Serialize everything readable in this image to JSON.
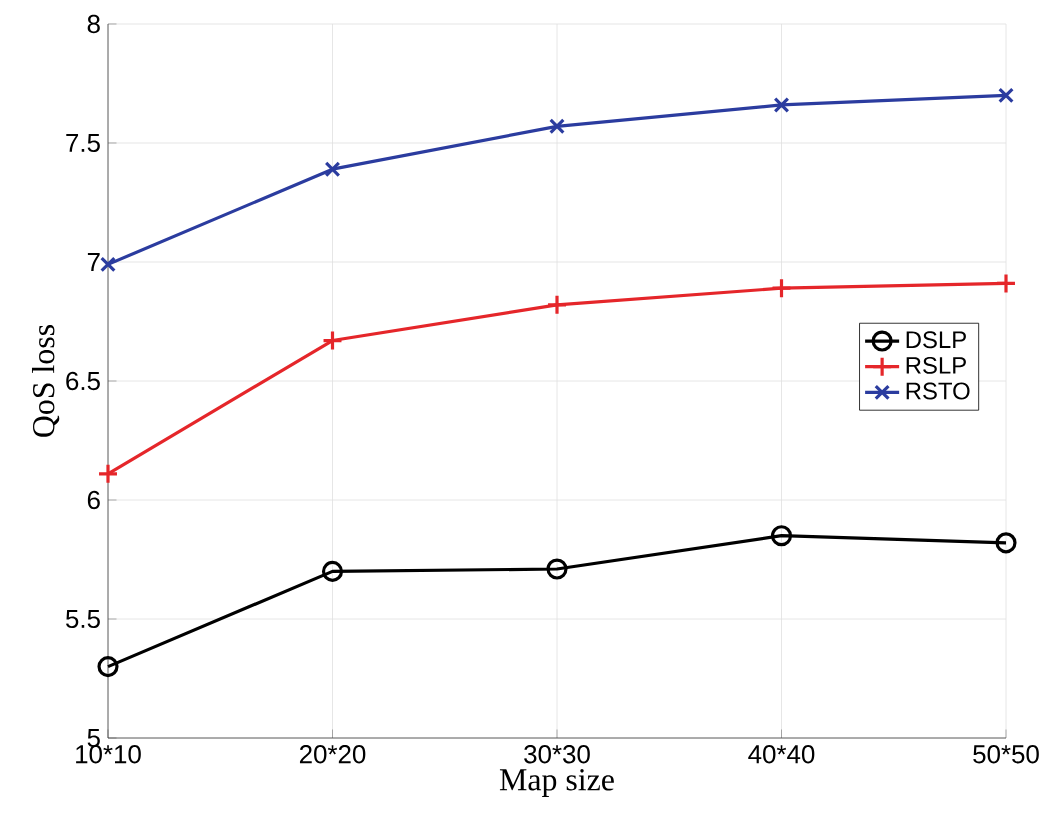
{
  "chart_data": {
    "type": "line",
    "xlabel": "Map size",
    "ylabel": "QoS loss",
    "categories": [
      "10*10",
      "20*20",
      "30*30",
      "40*40",
      "50*50"
    ],
    "series": [
      {
        "name": "DSLP",
        "color": "#000000",
        "marker": "circle",
        "values": [
          5.3,
          5.7,
          5.71,
          5.85,
          5.82
        ]
      },
      {
        "name": "RSLP",
        "color": "#e5262a",
        "marker": "plus",
        "values": [
          6.11,
          6.67,
          6.82,
          6.89,
          6.91
        ]
      },
      {
        "name": "RSTO",
        "color": "#2b3c9f",
        "marker": "cross",
        "values": [
          6.99,
          7.39,
          7.57,
          7.66,
          7.7
        ]
      }
    ],
    "ylim": [
      5,
      8
    ],
    "yticks": [
      5,
      5.5,
      6,
      6.5,
      7,
      7.5,
      8
    ],
    "grid": true,
    "legend": "right",
    "line_style": "solid"
  }
}
